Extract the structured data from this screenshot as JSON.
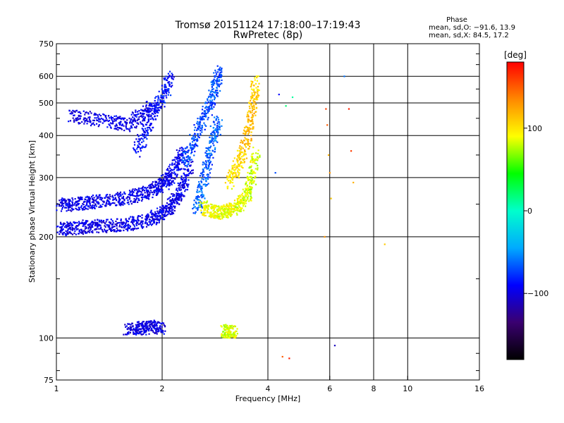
{
  "chart_data": {
    "type": "scatter",
    "title": "Tromsø 20151124 17:18:00–17:19:43",
    "subtitle": "RwPretec (8p)",
    "xlabel": "Frequency [MHz]",
    "ylabel": "Stationary phase Virtual Height [km]",
    "x_scale": "log",
    "y_scale": "log",
    "xlim": [
      1,
      16
    ],
    "ylim": [
      75,
      750
    ],
    "x_ticks": [
      1,
      2,
      4,
      6,
      8,
      10,
      16
    ],
    "x_tick_labels": [
      "1",
      "2",
      "4",
      "6",
      "8",
      "10",
      "16"
    ],
    "y_ticks": [
      75,
      100,
      200,
      300,
      400,
      500,
      600,
      750
    ],
    "y_tick_labels": [
      "75",
      "100",
      "200",
      "300",
      "400",
      "500",
      "600",
      "750"
    ],
    "grid": true,
    "stats": {
      "heading": "Phase",
      "line_o": "mean, sd,O: −91.6, 13.9",
      "line_x": "mean, sd,X:  84.5, 17.2"
    },
    "colorbar": {
      "label": "[deg]",
      "ticks": [
        100,
        0,
        -100
      ],
      "tick_labels": [
        "100",
        "0",
        "−100"
      ],
      "range": [
        -180,
        180
      ],
      "colors": [
        "#000000",
        "#3a0070",
        "#0000ff",
        "#00aaff",
        "#00ffcc",
        "#00ff00",
        "#ffff00",
        "#ff8800",
        "#ff0000"
      ]
    },
    "series": [
      {
        "name": "O",
        "mean_phase": -91.6,
        "traces": [
          {
            "x": [
              1.02,
              1.1,
              1.2,
              1.3,
              1.45,
              1.6,
              1.75,
              1.9,
              2.0,
              2.1,
              2.2,
              2.3,
              2.4
            ],
            "y": [
              210,
              212,
              214,
              215,
              216,
              218,
              222,
              228,
              235,
              245,
              260,
              285,
              330
            ],
            "phase": [
              -95,
              -100,
              -98,
              -97,
              -100,
              -95,
              -96,
              -98,
              -94,
              -100,
              -97,
              -95,
              -98
            ]
          },
          {
            "x": [
              1.02,
              1.1,
              1.2,
              1.3,
              1.45,
              1.6,
              1.75,
              1.9,
              2.0,
              2.1,
              2.2,
              2.3
            ],
            "y": [
              248,
              250,
              252,
              255,
              258,
              262,
              268,
              276,
              285,
              300,
              325,
              365
            ],
            "phase": [
              -100,
              -96,
              -95,
              -98,
              -96,
              -94,
              -97,
              -96,
              -95,
              -98,
              -96,
              -95
            ]
          },
          {
            "x": [
              2.3,
              2.45,
              2.6,
              2.75,
              2.85,
              2.9
            ],
            "y": [
              330,
              380,
              440,
              500,
              560,
              620
            ],
            "phase": [
              -70,
              -75,
              -70,
              -72,
              -68,
              -74
            ]
          },
          {
            "x": [
              2.5,
              2.6,
              2.7,
              2.8,
              2.9
            ],
            "y": [
              240,
              280,
              330,
              390,
              450
            ],
            "phase": [
              -65,
              -60,
              -70,
              -62,
              -68
            ]
          },
          {
            "x": [
              1.1,
              1.25,
              1.45,
              1.6,
              1.75,
              1.9
            ],
            "y": [
              460,
              450,
              440,
              430,
              460,
              500
            ],
            "phase": [
              -100,
              -98,
              -97,
              -96,
              -95,
              -97
            ]
          },
          {
            "x": [
              1.7,
              1.8,
              1.9,
              2.05,
              2.1
            ],
            "y": [
              360,
              420,
              480,
              540,
              600
            ],
            "phase": [
              -90,
              -88,
              -92,
              -86,
              -90
            ]
          },
          {
            "x": [
              1.6,
              1.7,
              1.8,
              1.9,
              2.0
            ],
            "y": [
              106,
              107,
              107,
              108,
              107
            ],
            "phase": [
              -100,
              -98,
              -96,
              -99,
              -97
            ]
          }
        ]
      },
      {
        "name": "X",
        "mean_phase": 84.5,
        "traces": [
          {
            "x": [
              2.6,
              2.75,
              2.9,
              3.05,
              3.2,
              3.35,
              3.5,
              3.6,
              3.7
            ],
            "y": [
              245,
              238,
              236,
              238,
              243,
              252,
              268,
              300,
              360
            ],
            "phase": [
              85,
              90,
              88,
              86,
              90,
              87,
              80,
              82,
              85
            ]
          },
          {
            "x": [
              3.1,
              3.25,
              3.4,
              3.55,
              3.65,
              3.7
            ],
            "y": [
              290,
              320,
              360,
              420,
              500,
              580
            ],
            "phase": [
              95,
              100,
              110,
              120,
              115,
              100
            ]
          },
          {
            "x": [
              3.0,
              3.1,
              3.2
            ],
            "y": [
              104,
              105,
              104
            ],
            "phase": [
              85,
              80,
              90
            ]
          }
        ]
      }
    ],
    "isolated_points": {
      "x": [
        5.85,
        5.9,
        5.95,
        6.0,
        6.05,
        6.6,
        6.8,
        6.9,
        7.0,
        4.3,
        4.5,
        4.7,
        4.2,
        8.6,
        6.2,
        4.4,
        4.6,
        5.8
      ],
      "y": [
        480,
        430,
        350,
        310,
        260,
        600,
        480,
        360,
        290,
        530,
        490,
        520,
        310,
        190,
        95,
        88,
        87,
        200
      ],
      "phase": [
        160,
        150,
        120,
        130,
        110,
        -60,
        170,
        160,
        120,
        -90,
        20,
        10,
        -70,
        110,
        -110,
        150,
        170,
        130
      ]
    }
  }
}
